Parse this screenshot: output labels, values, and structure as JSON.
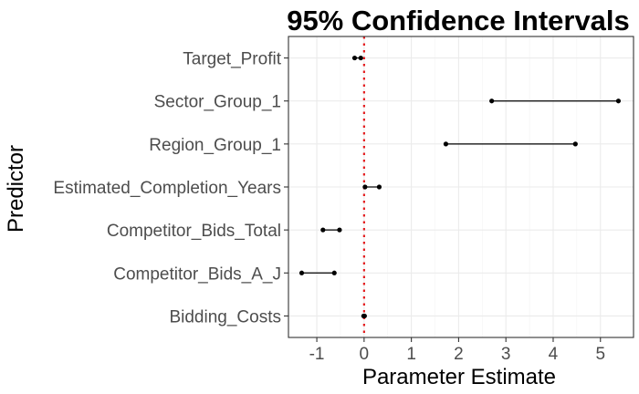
{
  "chart_data": {
    "type": "errorbar",
    "title": "95% Confidence Intervals",
    "xlabel": "Parameter Estimate",
    "ylabel": "Predictor",
    "xlim": [
      -1.6,
      5.7
    ],
    "x_ticks": [
      "-1",
      "0",
      "1",
      "2",
      "3",
      "4",
      "5"
    ],
    "x_tick_values": [
      -1,
      0,
      1,
      2,
      3,
      4,
      5
    ],
    "reference_line": {
      "x": 0,
      "color": "#e41a1c",
      "style": "dotted"
    },
    "grid": true,
    "categories": [
      "Target_Profit",
      "Sector_Group_1",
      "Region_Group_1",
      "Estimated_Completion_Years",
      "Competitor_Bids_Total",
      "Competitor_Bids_A_J",
      "Bidding_Costs"
    ],
    "intervals": [
      {
        "predictor": "Target_Profit",
        "lower": -0.2,
        "upper": -0.07
      },
      {
        "predictor": "Sector_Group_1",
        "lower": 2.7,
        "upper": 5.38
      },
      {
        "predictor": "Region_Group_1",
        "lower": 1.73,
        "upper": 4.47
      },
      {
        "predictor": "Estimated_Completion_Years",
        "lower": 0.02,
        "upper": 0.32
      },
      {
        "predictor": "Competitor_Bids_Total",
        "lower": -0.87,
        "upper": -0.52
      },
      {
        "predictor": "Competitor_Bids_A_J",
        "lower": -1.32,
        "upper": -0.63
      },
      {
        "predictor": "Bidding_Costs",
        "lower": -0.01,
        "upper": 0.01
      }
    ]
  }
}
